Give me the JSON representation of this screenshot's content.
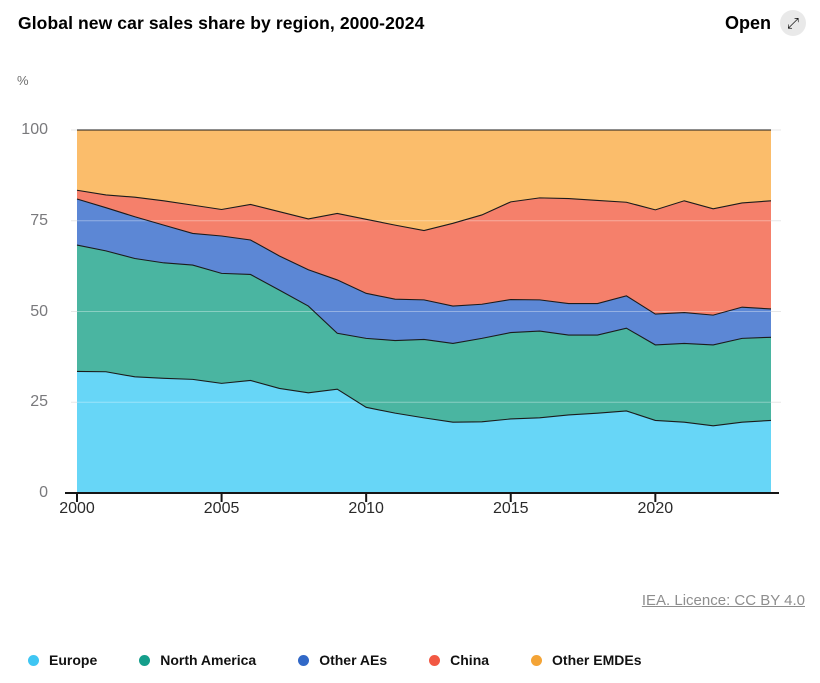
{
  "header": {
    "title": "Global new car sales share by region, 2000-2024",
    "open_label": "Open"
  },
  "icons": {
    "open_icon": "⤢"
  },
  "attribution": {
    "text": "IEA. Licence: CC BY 4.0"
  },
  "chart_data": {
    "type": "area",
    "stacked": true,
    "title": "Global new car sales share by region, 2000-2024",
    "unit": "%",
    "ylim": [
      0,
      100
    ],
    "grid": true,
    "legend_position": "bottom",
    "x": [
      2000,
      2001,
      2002,
      2003,
      2004,
      2005,
      2006,
      2007,
      2008,
      2009,
      2010,
      2011,
      2012,
      2013,
      2014,
      2015,
      2016,
      2017,
      2018,
      2019,
      2020,
      2021,
      2022,
      2023,
      2024
    ],
    "x_ticks": [
      2000,
      2005,
      2010,
      2015,
      2020
    ],
    "y_ticks": [
      0,
      25,
      50,
      75,
      100
    ],
    "boundary_line_color": "#1b1b1b",
    "series": [
      {
        "name": "Europe",
        "fill": "#67D6F7",
        "legend_color": "#3FC6F3",
        "values": [
          33.5,
          33.4,
          32.0,
          31.6,
          31.3,
          30.2,
          31.0,
          28.8,
          27.6,
          28.6,
          23.6,
          22.0,
          20.7,
          19.5,
          19.6,
          20.4,
          20.7,
          21.5,
          22.0,
          22.6,
          20.0,
          19.5,
          18.5,
          19.5,
          20.0
        ]
      },
      {
        "name": "North America",
        "fill": "#4AB5A1",
        "legend_color": "#149E8B",
        "values": [
          34.8,
          33.3,
          32.6,
          31.8,
          31.5,
          30.3,
          29.2,
          27.1,
          23.9,
          15.4,
          19.0,
          20.0,
          21.6,
          21.7,
          23.0,
          23.8,
          23.9,
          22.0,
          21.5,
          22.8,
          20.8,
          21.7,
          22.3,
          23.1,
          22.9
        ]
      },
      {
        "name": "Other AEs",
        "fill": "#5C87D5",
        "legend_color": "#3168C7",
        "values": [
          12.7,
          11.9,
          11.5,
          10.4,
          8.7,
          10.3,
          9.5,
          9.4,
          10.0,
          14.7,
          12.4,
          11.4,
          10.9,
          10.3,
          9.4,
          9.1,
          8.6,
          8.7,
          8.7,
          8.9,
          8.5,
          8.5,
          8.2,
          8.6,
          7.8
        ]
      },
      {
        "name": "China",
        "fill": "#F5806B",
        "legend_color": "#F25843",
        "values": [
          2.4,
          3.5,
          5.4,
          6.7,
          7.8,
          7.3,
          9.8,
          12.2,
          14.0,
          18.3,
          20.4,
          20.4,
          19.1,
          22.8,
          24.6,
          26.9,
          28.1,
          28.9,
          28.4,
          25.8,
          28.7,
          30.8,
          29.3,
          28.7,
          29.8
        ]
      },
      {
        "name": "Other EMDEs",
        "fill": "#FBBD6B",
        "legend_color": "#F4A436",
        "values": [
          16.6,
          17.9,
          18.5,
          19.5,
          20.7,
          21.9,
          20.5,
          22.5,
          24.5,
          23.0,
          24.6,
          26.2,
          27.7,
          25.7,
          23.4,
          19.8,
          18.7,
          18.9,
          19.4,
          19.9,
          22.0,
          19.5,
          21.7,
          20.1,
          19.5
        ]
      }
    ]
  }
}
